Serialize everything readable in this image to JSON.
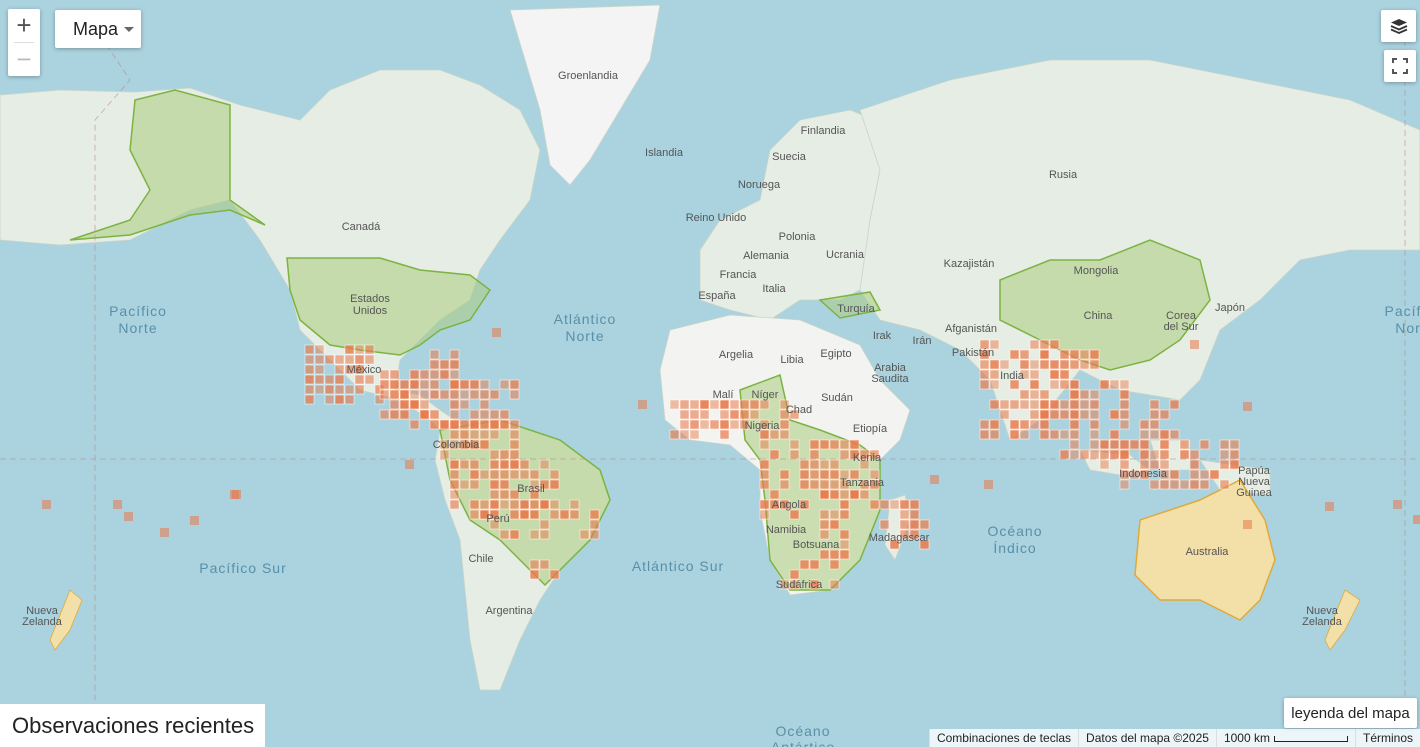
{
  "map": {
    "type_label": "Mapa",
    "zoom_in": "+",
    "zoom_out": "−",
    "labels": {
      "groenlandia": "Groenlandia",
      "islandia": "Islandia",
      "finlandia": "Finlandia",
      "suecia": "Suecia",
      "noruega": "Noruega",
      "reino_unido": "Reino Unido",
      "polonia": "Polonia",
      "alemania": "Alemania",
      "ucrania": "Ucrania",
      "francia": "Francia",
      "italia": "Italia",
      "espana": "España",
      "rusia": "Rusia",
      "kazajistan": "Kazajistán",
      "mongolia": "Mongolia",
      "china": "China",
      "corea_l1": "Corea",
      "corea_l2": "del Sur",
      "japon": "Japón",
      "turquia": "Turquía",
      "irak": "Irak",
      "iran": "Irán",
      "afganistan": "Afganistán",
      "pakistan": "Pakistán",
      "india": "India",
      "arabia_l1": "Arabia",
      "arabia_l2": "Saudita",
      "egipto": "Egipto",
      "libia": "Libia",
      "argelia": "Argelia",
      "mali": "Malí",
      "niger": "Níger",
      "chad": "Chad",
      "sudan": "Sudán",
      "nigeria": "Nigeria",
      "etiopia": "Etiopía",
      "kenia": "Kenia",
      "tanzania": "Tanzania",
      "angola": "Angola",
      "namibia": "Namibia",
      "botsuana": "Botsuana",
      "sudafrica": "Sudáfrica",
      "madagascar": "Madagascar",
      "canada": "Canadá",
      "eeuu_l1": "Estados",
      "eeuu_l2": "Unidos",
      "mexico": "México",
      "colombia": "Colombia",
      "brasil": "Brasil",
      "peru": "Perú",
      "chile": "Chile",
      "argentina": "Argentina",
      "indonesia": "Indonesia",
      "papua_l1": "Papúa",
      "papua_l2": "Nueva",
      "papua_l3": "Guinea",
      "australia": "Australia",
      "nz_l1": "Nueva",
      "nz_l2": "Zelanda",
      "pac_norte_l1": "Pacífico",
      "pac_norte_l2": "Norte",
      "pac_norte_r_l1": "Pacíf",
      "pac_norte_r_l2": "Nor",
      "atl_norte_l1": "Atlántico",
      "atl_norte_l2": "Norte",
      "atl_sur": "Atlántico Sur",
      "pac_sur": "Pacífico Sur",
      "oceano_indico_l1": "Océano",
      "oceano_indico_l2": "Índico",
      "oceano_antartico_l1": "Océano",
      "oceano_antartico_l2": "Antártico"
    }
  },
  "legend_button": "leyenda del mapa",
  "recent_observations": "Observaciones recientes",
  "attribution": {
    "shortcuts": "Combinaciones de teclas",
    "map_data": "Datos del mapa ©2025",
    "scale": "1000 km",
    "terms": "Términos"
  },
  "colors": {
    "water": "#aad3df",
    "land": "#e8eee6",
    "native_range": "#a9cc7e",
    "native_border": "#7cb342",
    "introduced_range": "#f4d58d",
    "introduced_border": "#e0a93a",
    "observation_cell": "#e8794a"
  },
  "icons": {
    "layers": "layers-icon",
    "fullscreen": "fullscreen-icon",
    "caret": "caret-down-icon"
  }
}
